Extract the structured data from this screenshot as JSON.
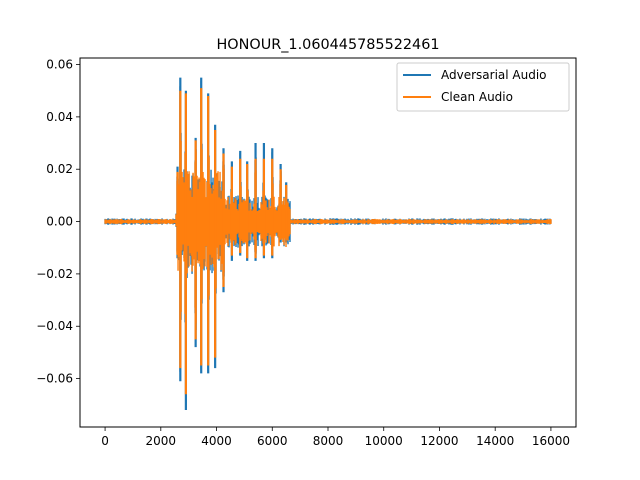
{
  "chart_data": {
    "type": "line",
    "title": "HONOUR_1.060445785522461",
    "xlabel": "",
    "ylabel": "",
    "xlim": [
      -900,
      16900
    ],
    "ylim": [
      -0.0785,
      0.0625
    ],
    "x_ticks": [
      0,
      2000,
      4000,
      6000,
      8000,
      10000,
      12000,
      14000,
      16000
    ],
    "x_tick_labels": [
      "0",
      "2000",
      "4000",
      "6000",
      "8000",
      "10000",
      "12000",
      "14000",
      "16000"
    ],
    "y_ticks": [
      -0.06,
      -0.04,
      -0.02,
      0.0,
      0.02,
      0.04,
      0.06
    ],
    "y_tick_labels": [
      "−0.06",
      "−0.04",
      "−0.02",
      "0.00",
      "0.02",
      "0.04",
      "0.06"
    ],
    "grid": false,
    "legend_position": "upper right",
    "x_range": [
      0,
      16000
    ],
    "series": [
      {
        "name": "Adversarial Audio",
        "color": "#1f77b4",
        "noise_level": 0.0009,
        "pulses": [
          {
            "x": 2600,
            "max": 0.021,
            "min": -0.014
          },
          {
            "x": 2700,
            "max": 0.055,
            "min": -0.061
          },
          {
            "x": 2900,
            "max": 0.05,
            "min": -0.072
          },
          {
            "x": 3250,
            "max": 0.032,
            "min": -0.048
          },
          {
            "x": 3450,
            "max": 0.055,
            "min": -0.058
          },
          {
            "x": 3700,
            "max": 0.049,
            "min": -0.058
          },
          {
            "x": 3950,
            "max": 0.037,
            "min": -0.056
          },
          {
            "x": 4250,
            "max": 0.028,
            "min": -0.027
          },
          {
            "x": 4550,
            "max": 0.023,
            "min": -0.015
          },
          {
            "x": 4850,
            "max": 0.027,
            "min": -0.013
          },
          {
            "x": 5100,
            "max": 0.023,
            "min": -0.015
          },
          {
            "x": 5400,
            "max": 0.03,
            "min": -0.015
          },
          {
            "x": 5700,
            "max": 0.03,
            "min": -0.014
          },
          {
            "x": 6000,
            "max": 0.028,
            "min": -0.014
          },
          {
            "x": 6300,
            "max": 0.022,
            "min": -0.008
          },
          {
            "x": 6500,
            "max": 0.015,
            "min": -0.008
          }
        ]
      },
      {
        "name": "Clean Audio",
        "color": "#ff7f0e",
        "noise_level": 0.0007,
        "pulses": [
          {
            "x": 2600,
            "max": 0.019,
            "min": -0.012
          },
          {
            "x": 2700,
            "max": 0.05,
            "min": -0.056
          },
          {
            "x": 2900,
            "max": 0.049,
            "min": -0.066
          },
          {
            "x": 3250,
            "max": 0.031,
            "min": -0.045
          },
          {
            "x": 3450,
            "max": 0.051,
            "min": -0.055
          },
          {
            "x": 3700,
            "max": 0.048,
            "min": -0.055
          },
          {
            "x": 3950,
            "max": 0.035,
            "min": -0.052
          },
          {
            "x": 4250,
            "max": 0.026,
            "min": -0.025
          },
          {
            "x": 4550,
            "max": 0.021,
            "min": -0.013
          },
          {
            "x": 4850,
            "max": 0.024,
            "min": -0.012
          },
          {
            "x": 5100,
            "max": 0.022,
            "min": -0.014
          },
          {
            "x": 5400,
            "max": 0.024,
            "min": -0.014
          },
          {
            "x": 5700,
            "max": 0.024,
            "min": -0.013
          },
          {
            "x": 6000,
            "max": 0.024,
            "min": -0.013
          },
          {
            "x": 6300,
            "max": 0.02,
            "min": -0.007
          },
          {
            "x": 6500,
            "max": 0.014,
            "min": -0.007
          }
        ]
      }
    ]
  }
}
